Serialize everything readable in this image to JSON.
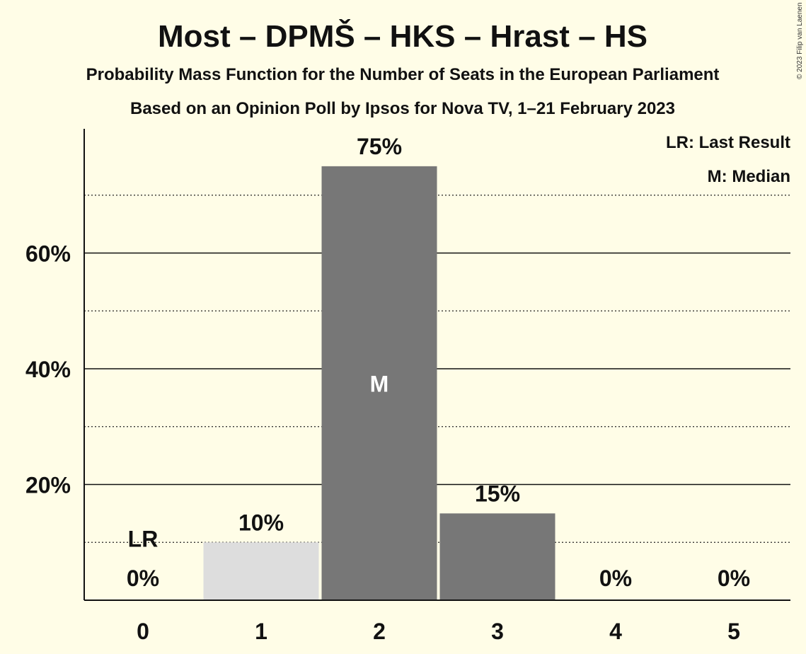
{
  "chart_data": {
    "type": "bar",
    "title": "Most – DPMŠ – HKS – Hrast – HS",
    "subtitle": "Probability Mass Function for the Number of Seats in the European Parliament",
    "subtitle2": "Based on an Opinion Poll by Ipsos for Nova TV, 1–21 February 2023",
    "copyright": "© 2023 Filip van Laenen",
    "legend": {
      "placement": "top-right",
      "items": [
        "LR: Last Result",
        "M: Median"
      ]
    },
    "categories": [
      "0",
      "1",
      "2",
      "3",
      "4",
      "5"
    ],
    "values": [
      0,
      10,
      75,
      15,
      0,
      0
    ],
    "value_labels": [
      "0%",
      "10%",
      "75%",
      "15%",
      "0%",
      "0%"
    ],
    "bar_colors": [
      "#dddddd",
      "#dddddd",
      "#777777",
      "#777777",
      "#777777",
      "#777777"
    ],
    "last_result": {
      "category": "0",
      "label": "LR",
      "value": 10
    },
    "median": {
      "category": "2",
      "label": "M"
    },
    "ylim": [
      0,
      80
    ],
    "yticks": [
      20,
      40,
      60
    ],
    "ytick_labels": [
      "20%",
      "40%",
      "60%"
    ],
    "minor_gridlines": [
      10,
      30,
      50,
      70
    ],
    "grid": true,
    "xlabel": "",
    "ylabel": ""
  }
}
